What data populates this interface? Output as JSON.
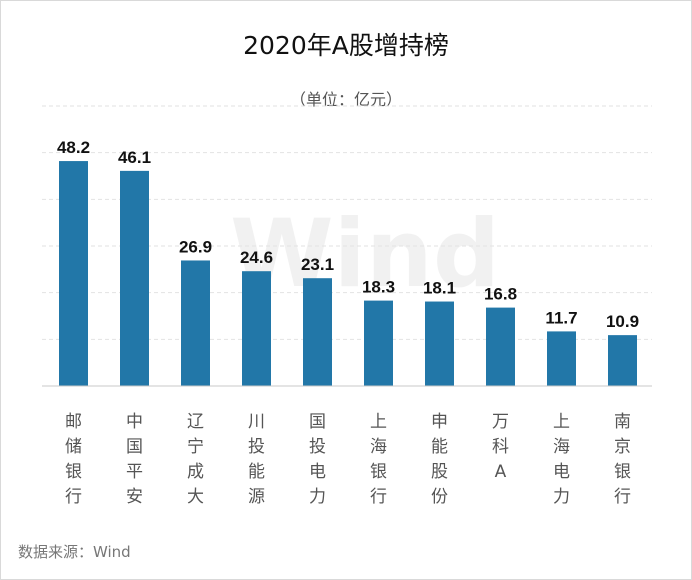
{
  "title": "2020年A股增持榜",
  "subtitle": "（单位：亿元）",
  "source": "数据来源：Wind",
  "watermark": "Wind",
  "chart_data": {
    "type": "bar",
    "title": "2020年A股增持榜",
    "unit": "亿元",
    "categories": [
      "邮储银行",
      "中国平安",
      "辽宁成大",
      "川投能源",
      "国投电力",
      "上海银行",
      "申能股份",
      "万科A",
      "上海电力",
      "南京银行"
    ],
    "values": [
      48.2,
      46.1,
      26.9,
      24.6,
      23.1,
      18.3,
      18.1,
      16.8,
      11.7,
      10.9
    ],
    "ylim": [
      0,
      60
    ],
    "grid": true,
    "bar_color": "#2277a8"
  }
}
